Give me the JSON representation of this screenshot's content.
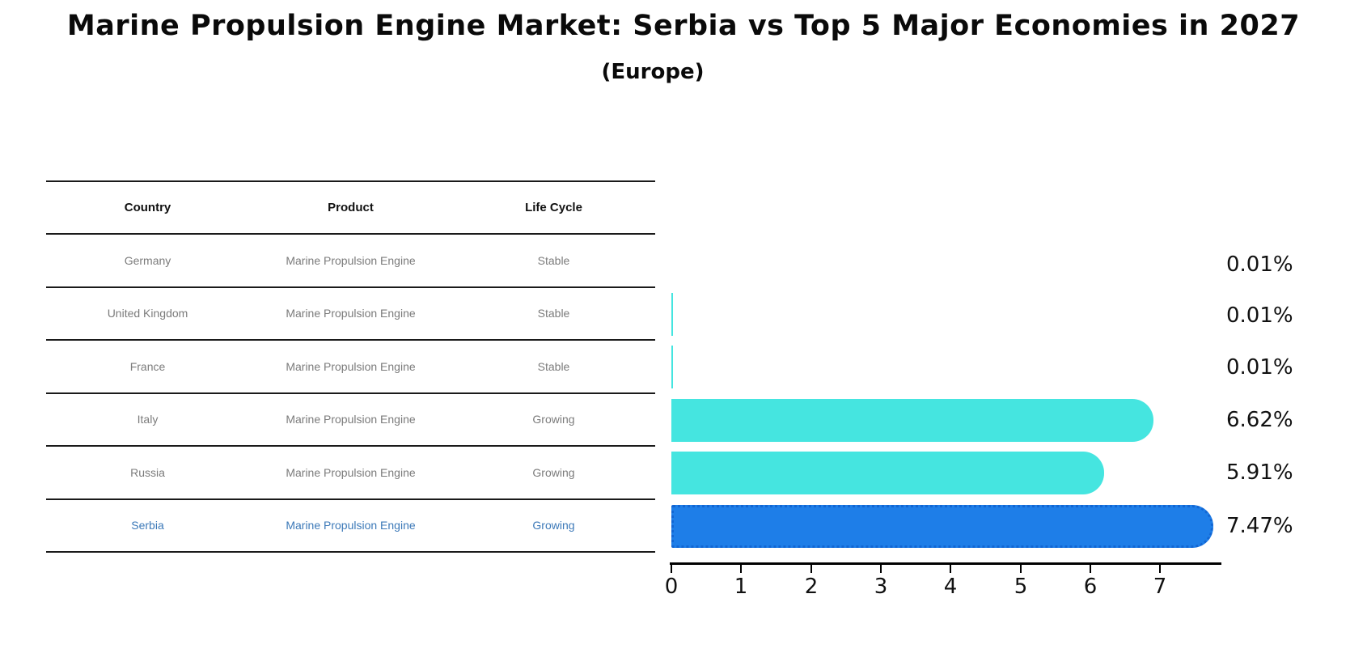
{
  "title": "Marine Propulsion Engine Market: Serbia vs Top 5 Major Economies in 2027",
  "subtitle": "(Europe)",
  "table": {
    "columns": [
      "Country",
      "Product",
      "Life Cycle"
    ],
    "rows": [
      {
        "country": "Germany",
        "product": "Marine Propulsion Engine",
        "life_cycle": "Stable",
        "highlight": false
      },
      {
        "country": "United Kingdom",
        "product": "Marine Propulsion Engine",
        "life_cycle": "Stable",
        "highlight": false
      },
      {
        "country": "France",
        "product": "Marine Propulsion Engine",
        "life_cycle": "Stable",
        "highlight": false
      },
      {
        "country": "Italy",
        "product": "Marine Propulsion Engine",
        "life_cycle": "Growing",
        "highlight": false
      },
      {
        "country": "Russia",
        "product": "Marine Propulsion Engine",
        "life_cycle": "Growing",
        "highlight": false
      },
      {
        "country": "Serbia",
        "product": "Marine Propulsion Engine",
        "life_cycle": "Growing",
        "highlight": true
      }
    ]
  },
  "chart_data": {
    "type": "bar",
    "orientation": "horizontal",
    "categories": [
      "Germany",
      "United Kingdom",
      "France",
      "Italy",
      "Russia",
      "Serbia"
    ],
    "values": [
      0.01,
      0.01,
      0.01,
      6.62,
      5.91,
      7.47
    ],
    "value_labels": [
      "0.01%",
      "0.01%",
      "0.01%",
      "6.62%",
      "5.91%",
      "7.47%"
    ],
    "x_ticks": [
      "0",
      "1",
      "2",
      "3",
      "4",
      "5",
      "6",
      "7"
    ],
    "xlim": [
      0,
      7.9
    ],
    "grid": false,
    "legend": false,
    "highlight_index": 5,
    "highlight_category": "Serbia"
  },
  "colors": {
    "bar_cyan": "#45e5e0",
    "bar_blue": "#1e7ee8",
    "bar_blue_edge": "#1266d3",
    "text_gray": "#7b7b7b",
    "highlight_text": "#3c79b8"
  }
}
